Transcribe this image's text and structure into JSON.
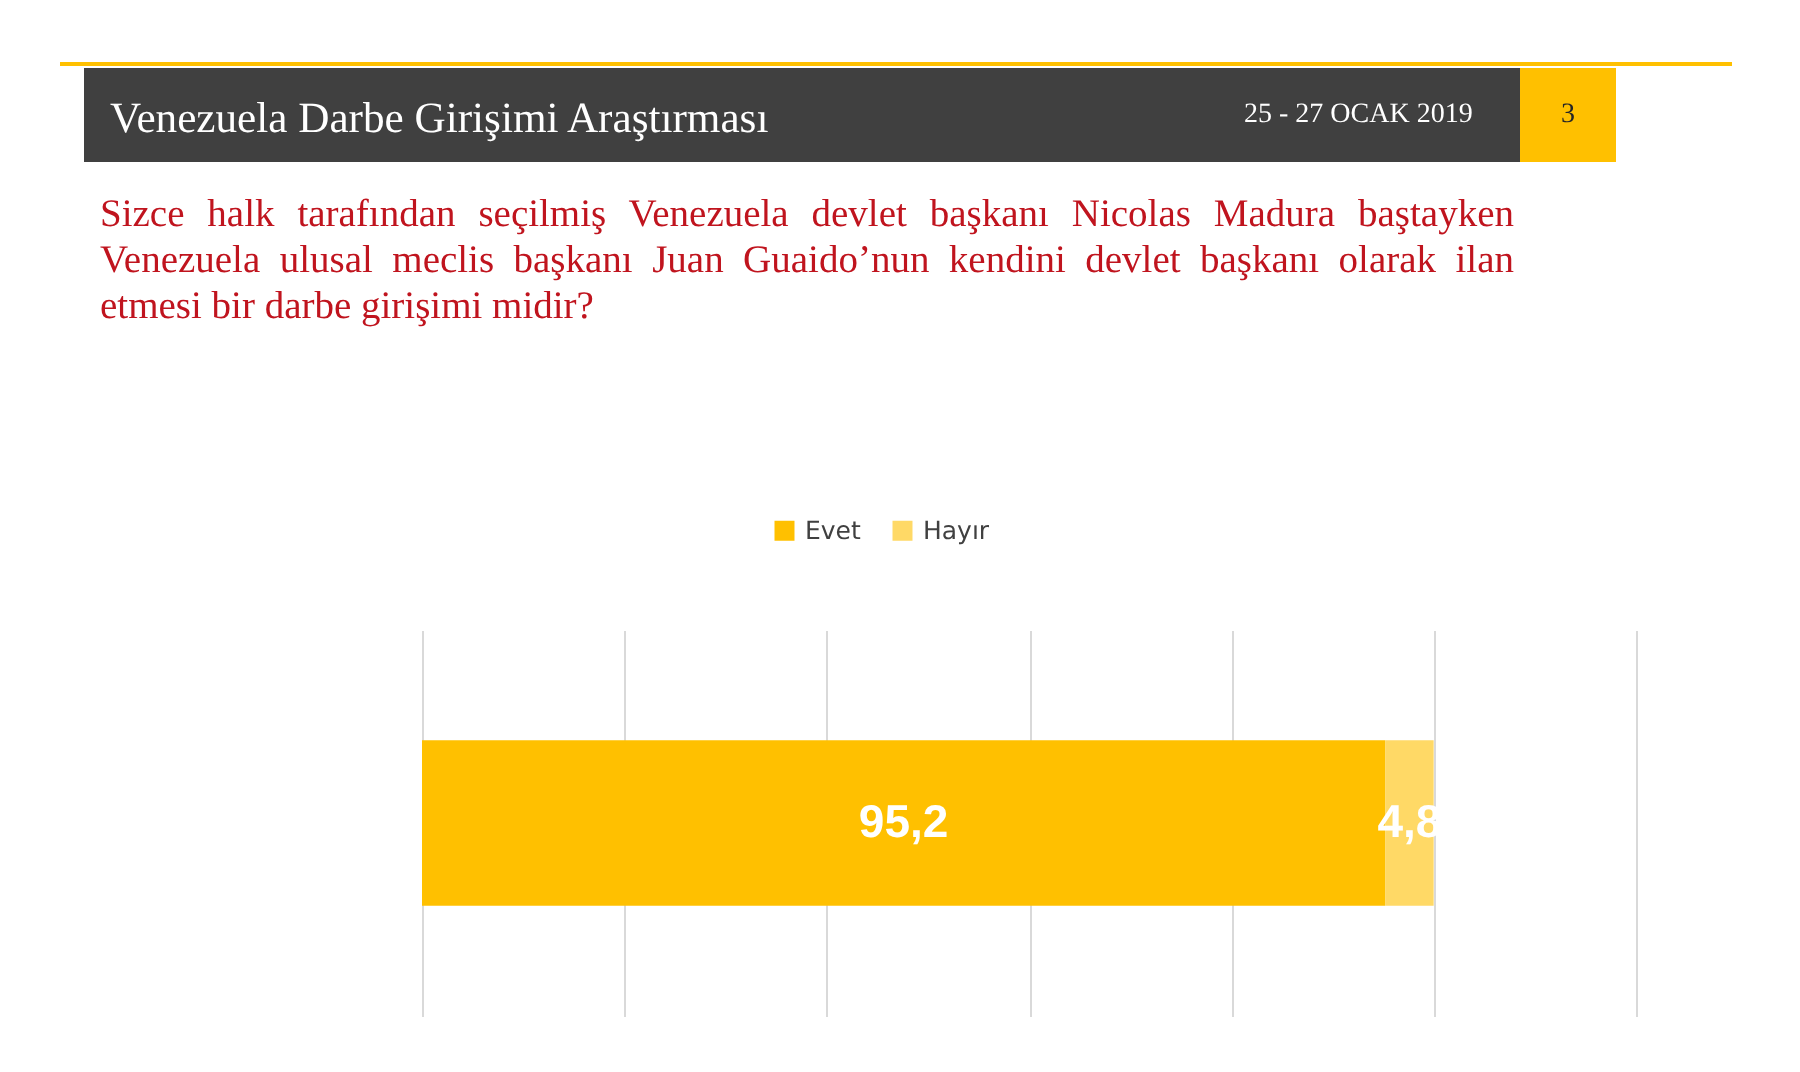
{
  "chart_data": {
    "type": "bar",
    "orientation": "horizontal",
    "stacked": true,
    "title": "Venezuela Darbe Girişimi Araştırması",
    "subtitle": "Sizce halk tarafından seçilmiş Venezuela devlet başkanı Nicolas Madura baştayken Venezuela ulusal meclis başkanı Juan Guaido’nun kendini devlet başkanı olarak ilan etmesi bir darbe girişimi midir?",
    "annotations": [
      "25 - 27 OCAK 2019",
      "3"
    ],
    "categories": [
      null
    ],
    "series": [
      {
        "name": "Evet",
        "color": "#ffc000",
        "values": [
          95.2
        ],
        "value_labels": [
          "95,2"
        ]
      },
      {
        "name": "Hayır",
        "color": "#ffd966",
        "values": [
          4.8
        ],
        "value_labels": [
          "4,8"
        ]
      }
    ],
    "xlim": [
      0,
      120
    ],
    "xticks": [
      {
        "value": 0,
        "label": null
      },
      {
        "value": 20,
        "label": null
      },
      {
        "value": 40,
        "label": null
      },
      {
        "value": 60,
        "label": null
      },
      {
        "value": 80,
        "label": null
      },
      {
        "value": 100,
        "label": null
      },
      {
        "value": 120,
        "label": null
      }
    ],
    "grid": "x",
    "legend": "top"
  }
}
